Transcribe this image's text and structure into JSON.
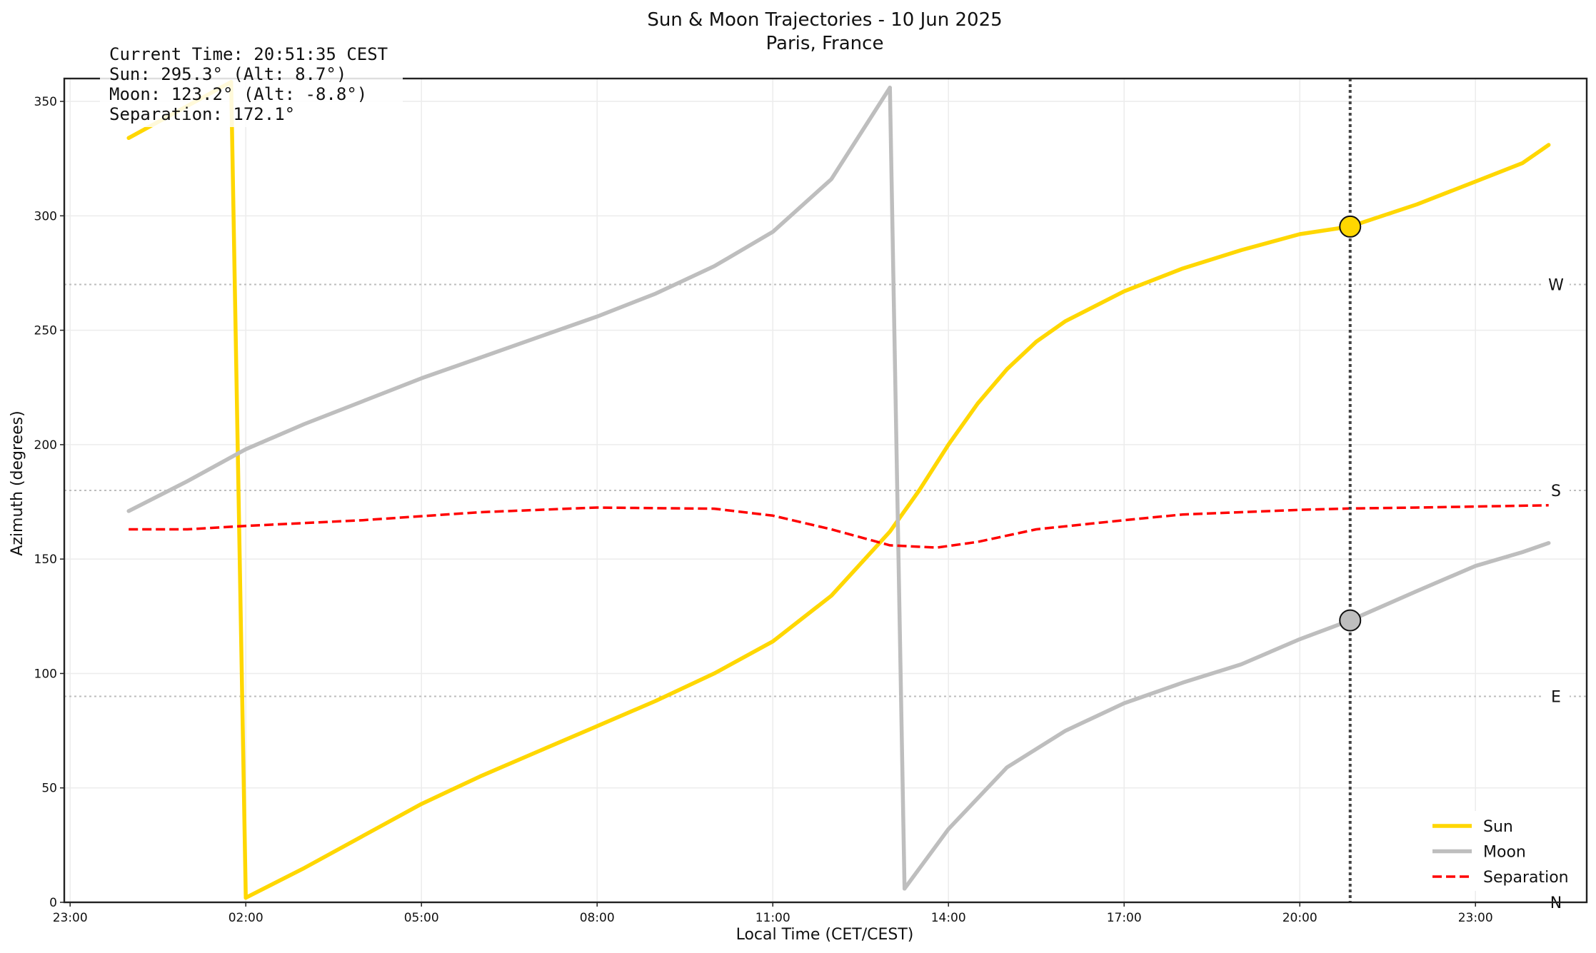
{
  "chart_data": {
    "type": "line",
    "title": "Sun & Moon Trajectories - 10 Jun 2025",
    "subtitle": "Paris, France",
    "xlabel": "Local Time (CET/CEST)",
    "ylabel": "Azimuth (degrees)",
    "xlim": [
      -1.1,
      24.9
    ],
    "ylim": [
      0,
      360
    ],
    "grid": true,
    "legend_position": "bottom-right",
    "x_ticks": [
      {
        "x": -1,
        "label": "23:00"
      },
      {
        "x": 2,
        "label": "02:00"
      },
      {
        "x": 5,
        "label": "05:00"
      },
      {
        "x": 8,
        "label": "08:00"
      },
      {
        "x": 11,
        "label": "11:00"
      },
      {
        "x": 14,
        "label": "14:00"
      },
      {
        "x": 17,
        "label": "17:00"
      },
      {
        "x": 20,
        "label": "20:00"
      },
      {
        "x": 23,
        "label": "23:00"
      }
    ],
    "y_ticks": [
      {
        "y": 0,
        "label": "0"
      },
      {
        "y": 50,
        "label": "50"
      },
      {
        "y": 100,
        "label": "100"
      },
      {
        "y": 150,
        "label": "150"
      },
      {
        "y": 200,
        "label": "200"
      },
      {
        "y": 250,
        "label": "250"
      },
      {
        "y": 300,
        "label": "300"
      },
      {
        "y": 350,
        "label": "350"
      }
    ],
    "direction_lines": [
      {
        "y": 0,
        "label": "N"
      },
      {
        "y": 90,
        "label": "E"
      },
      {
        "y": 180,
        "label": "S"
      },
      {
        "y": 270,
        "label": "W"
      }
    ],
    "current_time_x": 20.86,
    "series": [
      {
        "name": "Sun",
        "color": "#FFD700",
        "style": "solid",
        "segments": [
          [
            [
              0,
              334
            ],
            [
              0.5,
              341
            ],
            [
              1,
              348
            ],
            [
              1.5,
              355
            ],
            [
              1.75,
              358.5
            ]
          ],
          [
            [
              1.75,
              358.5
            ],
            [
              2.0,
              2
            ]
          ],
          [
            [
              2.0,
              2
            ],
            [
              3,
              15
            ],
            [
              4,
              29
            ],
            [
              5,
              43
            ],
            [
              6,
              55
            ],
            [
              7,
              66
            ],
            [
              8,
              77
            ],
            [
              9,
              88
            ],
            [
              10,
              100
            ],
            [
              11,
              114
            ],
            [
              12,
              134
            ],
            [
              12.5,
              148
            ],
            [
              13,
              162
            ],
            [
              13.5,
              180
            ],
            [
              14,
              200
            ],
            [
              14.5,
              218
            ],
            [
              15,
              233
            ],
            [
              15.5,
              245
            ],
            [
              16,
              254
            ],
            [
              17,
              267
            ],
            [
              18,
              277
            ],
            [
              19,
              285
            ],
            [
              20,
              292
            ],
            [
              20.86,
              295.3
            ],
            [
              22,
              305
            ],
            [
              23,
              315
            ],
            [
              23.8,
              323
            ],
            [
              24.25,
              331
            ]
          ]
        ]
      },
      {
        "name": "Moon",
        "color": "#BEBEBE",
        "style": "solid",
        "segments": [
          [
            [
              0,
              171
            ],
            [
              1,
              184
            ],
            [
              2,
              198
            ],
            [
              3,
              209
            ],
            [
              4,
              219
            ],
            [
              5,
              229
            ],
            [
              6,
              238
            ],
            [
              7,
              247
            ],
            [
              8,
              256
            ],
            [
              9,
              266
            ],
            [
              10,
              278
            ],
            [
              11,
              293
            ],
            [
              12,
              316
            ],
            [
              12.6,
              340
            ],
            [
              13.0,
              356
            ]
          ],
          [
            [
              13.0,
              356
            ],
            [
              13.25,
              6
            ]
          ],
          [
            [
              13.25,
              6
            ],
            [
              14,
              32
            ],
            [
              15,
              59
            ],
            [
              16,
              75
            ],
            [
              17,
              87
            ],
            [
              18,
              96
            ],
            [
              19,
              104
            ],
            [
              20,
              115
            ],
            [
              20.86,
              123.2
            ],
            [
              22,
              136
            ],
            [
              23,
              147
            ],
            [
              23.8,
              153
            ],
            [
              24.25,
              157
            ]
          ]
        ]
      },
      {
        "name": "Separation",
        "color": "#FF0000",
        "style": "dashed",
        "segments": [
          [
            [
              0,
              163
            ],
            [
              1,
              163
            ],
            [
              2,
              164.5
            ],
            [
              4,
              167
            ],
            [
              6,
              170.5
            ],
            [
              8,
              172.5
            ],
            [
              10,
              172
            ],
            [
              11,
              169
            ],
            [
              12,
              163
            ],
            [
              13,
              156
            ],
            [
              13.8,
              155
            ],
            [
              14.5,
              157.5
            ],
            [
              15.5,
              163
            ],
            [
              17,
              167
            ],
            [
              18,
              169.5
            ],
            [
              20,
              171.5
            ],
            [
              20.86,
              172.1
            ],
            [
              22,
              172.5
            ],
            [
              24.25,
              173.5
            ]
          ]
        ]
      }
    ],
    "markers": [
      {
        "series": "Sun",
        "x": 20.86,
        "y": 295.3,
        "color": "#FFD700"
      },
      {
        "series": "Moon",
        "x": 20.86,
        "y": 123.2,
        "color": "#BEBEBE"
      }
    ],
    "info_box": [
      "Current Time: 20:51:35 CEST",
      "Sun: 295.3° (Alt: 8.7°)",
      "Moon: 123.2° (Alt: -8.8°)",
      "Separation: 172.1°"
    ]
  }
}
